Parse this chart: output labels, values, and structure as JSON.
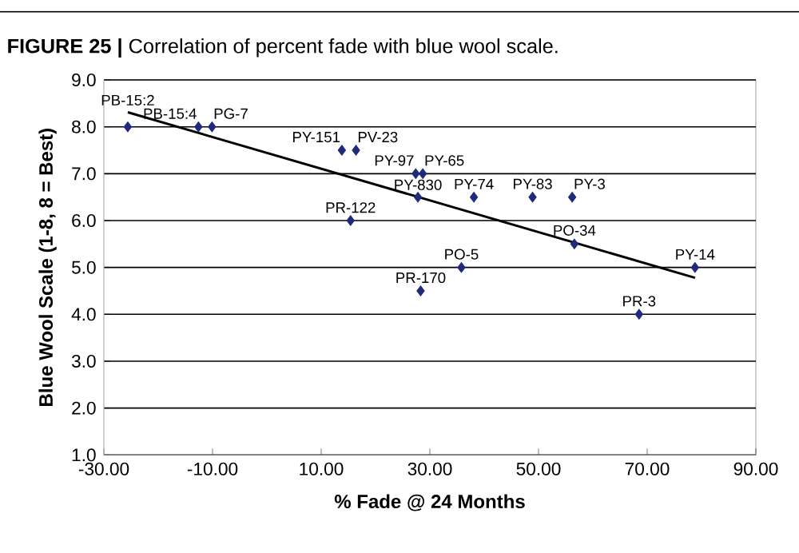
{
  "chart_data": {
    "type": "scatter",
    "title": "**FIGURE 25 |** Correlation of percent fade with blue wool scale.",
    "xlabel": "% Fade @ 24 Months",
    "ylabel": "Blue Wool Scale (1-8, 8 = Best)",
    "xlim": [
      -30,
      90
    ],
    "xticks": [
      {
        "value": -30,
        "label": "-30.00"
      },
      {
        "value": -10,
        "label": "-10.00"
      },
      {
        "value": 10,
        "label": "10.00"
      },
      {
        "value": 30,
        "label": "30.00"
      },
      {
        "value": 50,
        "label": "50.00"
      },
      {
        "value": 70,
        "label": "70.00"
      },
      {
        "value": 90,
        "label": "90.00"
      }
    ],
    "ylim": [
      1,
      9
    ],
    "yticks": [
      {
        "value": 1,
        "label": "1.0"
      },
      {
        "value": 2,
        "label": "2.0"
      },
      {
        "value": 3,
        "label": "3.0"
      },
      {
        "value": 4,
        "label": "4.0"
      },
      {
        "value": 5,
        "label": "5.0"
      },
      {
        "value": 6,
        "label": "6.0"
      },
      {
        "value": 7,
        "label": "7.0"
      },
      {
        "value": 8,
        "label": "8.0"
      },
      {
        "value": 9,
        "label": "9.0"
      }
    ],
    "grid": "y",
    "marker": "diamond",
    "series": [
      {
        "type": "scatter",
        "color": "#1f2a7a",
        "x": [
          -25.6,
          -12.6,
          -10.1,
          13.8,
          16.4,
          15.4,
          27.4,
          28.7,
          27.8,
          28.3,
          38.1,
          48.9,
          56.2,
          35.8,
          56.6,
          68.5,
          78.8
        ],
        "values": [
          8.0,
          8.0,
          8.0,
          7.5,
          7.5,
          6.0,
          7.0,
          7.0,
          6.5,
          4.5,
          6.5,
          6.5,
          6.5,
          5.0,
          5.5,
          4.0,
          5.0
        ]
      },
      {
        "type": "line",
        "color": "#000000",
        "marker": "none",
        "x": [
          -25.6,
          78.8
        ],
        "values": [
          8.31,
          4.78
        ]
      }
    ],
    "annotations": [
      {
        "text": "PB-15:2",
        "x": -25.6,
        "y": 8.0
      },
      {
        "text": "PB-15:4",
        "x": -12.6,
        "y": 8.0
      },
      {
        "text": "PG-7",
        "x": -10.1,
        "y": 8.0
      },
      {
        "text": "PY-151",
        "x": 13.8,
        "y": 7.5
      },
      {
        "text": "PV-23",
        "x": 16.4,
        "y": 7.5
      },
      {
        "text": "PR-122",
        "x": 15.4,
        "y": 6.0
      },
      {
        "text": "PY-97",
        "x": 27.4,
        "y": 7.0
      },
      {
        "text": "PY-65",
        "x": 28.7,
        "y": 7.0
      },
      {
        "text": "PY-830",
        "x": 27.8,
        "y": 6.5
      },
      {
        "text": "PR-170",
        "x": 28.3,
        "y": 4.5
      },
      {
        "text": "PY-74",
        "x": 38.1,
        "y": 6.5
      },
      {
        "text": "PY-83",
        "x": 48.9,
        "y": 6.5
      },
      {
        "text": "PY-3",
        "x": 56.2,
        "y": 6.5
      },
      {
        "text": "PO-5",
        "x": 35.8,
        "y": 5.0
      },
      {
        "text": "PO-34",
        "x": 56.6,
        "y": 5.5
      },
      {
        "text": "PR-3",
        "x": 68.5,
        "y": 4.0
      },
      {
        "text": "PY-14",
        "x": 78.8,
        "y": 5.0
      }
    ]
  }
}
